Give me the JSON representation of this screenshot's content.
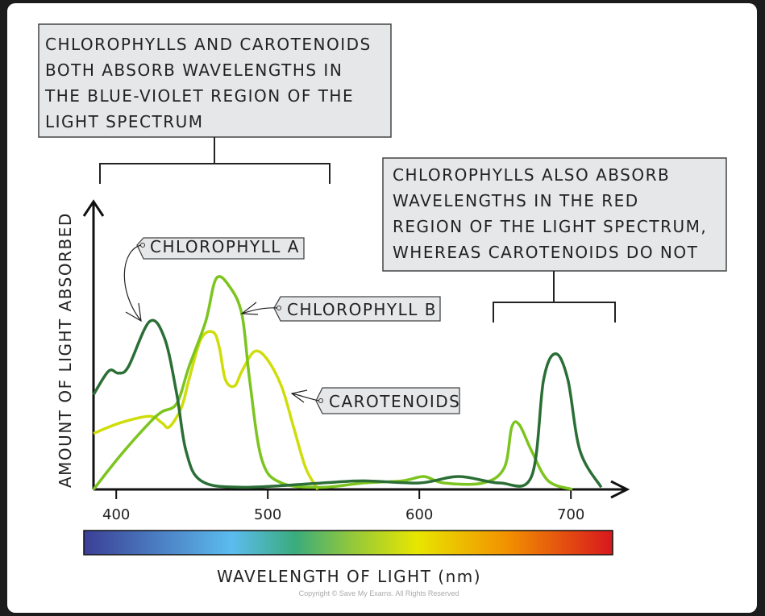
{
  "chart_data": {
    "type": "line",
    "xlabel": "WAVELENGTH OF LIGHT (nm)",
    "ylabel": "AMOUNT OF LIGHT ABSORBED",
    "xlim": [
      385,
      730
    ],
    "ylim": [
      0,
      1
    ],
    "x_ticks": [
      "400",
      "500",
      "600",
      "700"
    ],
    "grid": false,
    "series": [
      {
        "name": "CHLOROPHYLL A",
        "color": "#2b6e36",
        "x": [
          385,
          395,
          401.5,
          408,
          422,
          432,
          440,
          446,
          456,
          483,
          536,
          563,
          600,
          626,
          653,
          674,
          682,
          690,
          698,
          706,
          720
        ],
        "y": [
          0.44,
          0.55,
          0.54,
          0.57,
          0.78,
          0.7,
          0.44,
          0.18,
          0.04,
          0.01,
          0.03,
          0.04,
          0.03,
          0.06,
          0.03,
          0.06,
          0.51,
          0.63,
          0.51,
          0.18,
          0.01
        ]
      },
      {
        "name": "CHLOROPHYLL B",
        "color": "#7cc41e",
        "x": [
          385,
          403,
          422,
          430,
          440,
          448,
          459,
          466,
          475,
          483,
          488,
          496,
          509,
          536,
          563,
          589,
          603,
          616,
          642,
          656,
          661,
          666,
          674,
          685,
          701
        ],
        "y": [
          0,
          0.16,
          0.31,
          0.36,
          0.4,
          0.57,
          0.78,
          0.98,
          0.94,
          0.81,
          0.51,
          0.14,
          0.03,
          0.01,
          0.03,
          0.04,
          0.06,
          0.03,
          0.03,
          0.1,
          0.29,
          0.3,
          0.18,
          0.04,
          0
        ]
      },
      {
        "name": "CAROTENOIDS",
        "color": "#cfdd0a",
        "x": [
          385,
          403,
          422,
          430,
          435,
          443,
          448,
          456,
          464,
          468,
          472,
          478,
          483,
          491,
          499,
          509,
          517,
          525,
          533
        ],
        "y": [
          0.26,
          0.31,
          0.34,
          0.31,
          0.29,
          0.38,
          0.51,
          0.7,
          0.73,
          0.66,
          0.51,
          0.48,
          0.55,
          0.64,
          0.61,
          0.48,
          0.29,
          0.1,
          0
        ]
      }
    ],
    "annotations": {
      "blue_violet": [
        "CHLOROPHYLLS AND CAROTENOIDS",
        "BOTH ABSORB WAVELENGTHS IN",
        "THE BLUE-VIOLET REGION OF THE",
        "LIGHT SPECTRUM"
      ],
      "red": [
        "CHLOROPHYLLS ALSO ABSORB",
        "WAVELENGTHS IN THE RED",
        "REGION OF THE LIGHT SPECTRUM,",
        "WHEREAS CAROTENOIDS DO NOT"
      ]
    },
    "spectrum_colors": [
      "#3b3f95",
      "#5bbcef",
      "#3aab7c",
      "#8dc63f",
      "#e8e600",
      "#f29100",
      "#d8171d"
    ]
  },
  "copyright": "Copyright © Save My Exams. All Rights Reserved"
}
